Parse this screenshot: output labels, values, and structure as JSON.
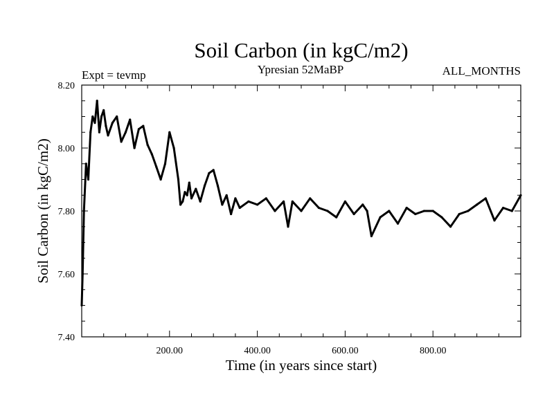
{
  "chart_data": {
    "type": "line",
    "title": "Soil Carbon (in kgC/m2)",
    "subtitle_left": "Expt = tevmp",
    "subtitle_center": "Ypresian  52MaBP",
    "subtitle_right": "ALL_MONTHS",
    "xlabel": "Time (in years since start)",
    "ylabel": "Soil Carbon (in kgC/m2)",
    "xlim": [
      0,
      1000
    ],
    "ylim": [
      7.4,
      8.2
    ],
    "x_ticks": [
      200,
      400,
      600,
      800
    ],
    "x_tick_labels": [
      "200.00",
      "400.00",
      "600.00",
      "800.00"
    ],
    "y_ticks": [
      7.4,
      7.6,
      7.8,
      8.0,
      8.2
    ],
    "y_tick_labels": [
      "7.40",
      "7.60",
      "7.80",
      "8.00",
      "8.20"
    ],
    "series": [
      {
        "name": "Soil Carbon",
        "x": [
          0,
          2,
          5,
          10,
          15,
          20,
          25,
          30,
          35,
          40,
          45,
          50,
          55,
          60,
          70,
          80,
          90,
          100,
          110,
          120,
          130,
          140,
          150,
          160,
          170,
          180,
          190,
          200,
          210,
          220,
          225,
          230,
          235,
          240,
          245,
          250,
          260,
          270,
          280,
          290,
          300,
          310,
          320,
          330,
          340,
          350,
          360,
          380,
          400,
          420,
          440,
          460,
          470,
          480,
          500,
          520,
          540,
          560,
          580,
          600,
          620,
          640,
          650,
          660,
          680,
          700,
          720,
          740,
          760,
          780,
          800,
          820,
          840,
          860,
          880,
          900,
          920,
          940,
          960,
          980,
          1000
        ],
        "values": [
          7.5,
          7.6,
          7.8,
          7.95,
          7.9,
          8.05,
          8.1,
          8.08,
          8.15,
          8.05,
          8.1,
          8.12,
          8.07,
          8.04,
          8.08,
          8.1,
          8.02,
          8.05,
          8.09,
          8.0,
          8.06,
          8.07,
          8.01,
          7.98,
          7.94,
          7.9,
          7.95,
          8.05,
          8.0,
          7.9,
          7.82,
          7.83,
          7.86,
          7.85,
          7.89,
          7.84,
          7.87,
          7.83,
          7.88,
          7.92,
          7.93,
          7.88,
          7.82,
          7.85,
          7.79,
          7.84,
          7.81,
          7.83,
          7.82,
          7.84,
          7.8,
          7.83,
          7.75,
          7.83,
          7.8,
          7.84,
          7.81,
          7.8,
          7.78,
          7.83,
          7.79,
          7.82,
          7.8,
          7.72,
          7.78,
          7.8,
          7.76,
          7.81,
          7.79,
          7.8,
          7.8,
          7.78,
          7.75,
          7.79,
          7.8,
          7.82,
          7.84,
          7.77,
          7.81,
          7.8,
          7.85
        ]
      }
    ]
  }
}
